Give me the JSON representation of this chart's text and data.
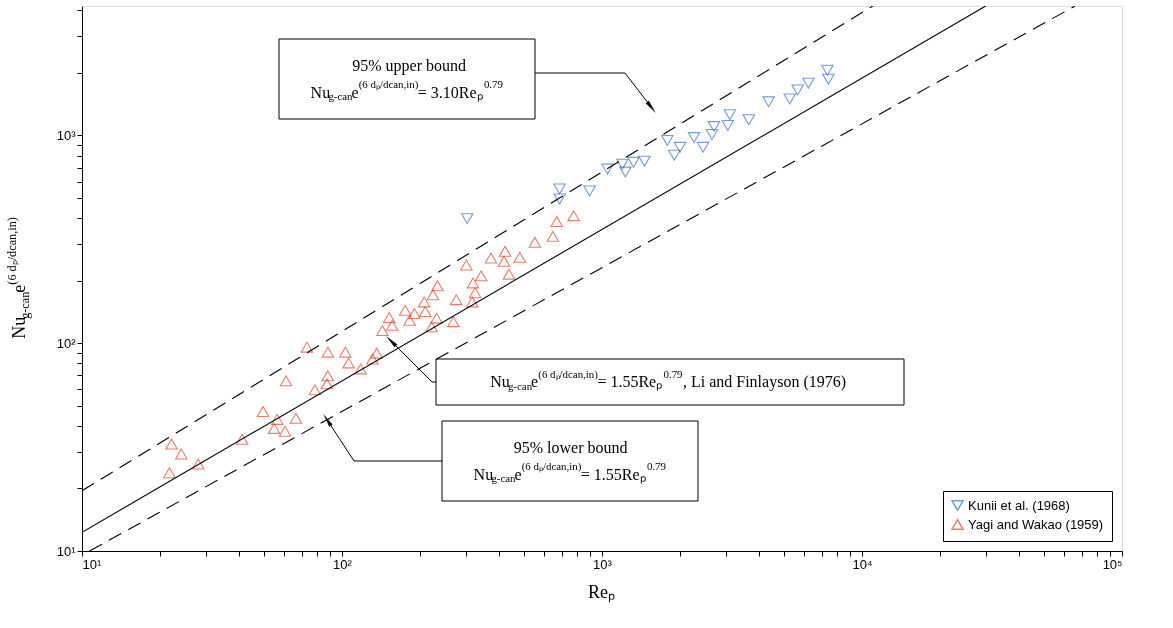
{
  "chart_data": {
    "type": "scatter",
    "xlabel": "Reₚ",
    "ylabel": "Nu$_{g-can}$e$^{(6 dₚ/dcan,in)}$",
    "xlim": [
      10,
      100000
    ],
    "ylim": [
      10,
      4200
    ],
    "log": "xy",
    "grid": false,
    "legend": "bottom right",
    "xticks": [
      {
        "value": 10,
        "label": "10¹"
      },
      {
        "value": 20,
        "label": null
      },
      {
        "value": 30,
        "label": null
      },
      {
        "value": 40,
        "label": null
      },
      {
        "value": 50,
        "label": null
      },
      {
        "value": 60,
        "label": null
      },
      {
        "value": 70,
        "label": null
      },
      {
        "value": 80,
        "label": null
      },
      {
        "value": 90,
        "label": null
      },
      {
        "value": 100,
        "label": "10²"
      },
      {
        "value": 200,
        "label": null
      },
      {
        "value": 300,
        "label": null
      },
      {
        "value": 400,
        "label": null
      },
      {
        "value": 500,
        "label": null
      },
      {
        "value": 600,
        "label": null
      },
      {
        "value": 700,
        "label": null
      },
      {
        "value": 800,
        "label": null
      },
      {
        "value": 900,
        "label": null
      },
      {
        "value": 1000,
        "label": "10³"
      },
      {
        "value": 2000,
        "label": null
      },
      {
        "value": 3000,
        "label": null
      },
      {
        "value": 4000,
        "label": null
      },
      {
        "value": 5000,
        "label": null
      },
      {
        "value": 6000,
        "label": null
      },
      {
        "value": 7000,
        "label": null
      },
      {
        "value": 8000,
        "label": null
      },
      {
        "value": 9000,
        "label": null
      },
      {
        "value": 10000,
        "label": "10⁴"
      },
      {
        "value": 20000,
        "label": null
      },
      {
        "value": 30000,
        "label": null
      },
      {
        "value": 40000,
        "label": null
      },
      {
        "value": 50000,
        "label": null
      },
      {
        "value": 60000,
        "label": null
      },
      {
        "value": 70000,
        "label": null
      },
      {
        "value": 80000,
        "label": null
      },
      {
        "value": 90000,
        "label": null
      },
      {
        "value": 100000,
        "label": "10⁵"
      }
    ],
    "yticks": [
      {
        "value": 10,
        "label": "10¹"
      },
      {
        "value": 20,
        "label": null
      },
      {
        "value": 30,
        "label": null
      },
      {
        "value": 40,
        "label": null
      },
      {
        "value": 50,
        "label": null
      },
      {
        "value": 60,
        "label": null
      },
      {
        "value": 70,
        "label": null
      },
      {
        "value": 80,
        "label": null
      },
      {
        "value": 90,
        "label": null
      },
      {
        "value": 100,
        "label": "10²"
      },
      {
        "value": 200,
        "label": null
      },
      {
        "value": 300,
        "label": null
      },
      {
        "value": 400,
        "label": null
      },
      {
        "value": 500,
        "label": null
      },
      {
        "value": 600,
        "label": null
      },
      {
        "value": 700,
        "label": null
      },
      {
        "value": 800,
        "label": null
      },
      {
        "value": 900,
        "label": null
      },
      {
        "value": 1000,
        "label": "10³"
      },
      {
        "value": 2000,
        "label": null
      },
      {
        "value": 3000,
        "label": null
      },
      {
        "value": 4000,
        "label": null
      }
    ],
    "series": [
      {
        "name": "Kunii et al. (1968)",
        "color": "#3a70c8",
        "marker": "triangle-down",
        "x": [
          303,
          687,
          687,
          896,
          1050,
          1197,
          1230,
          1321,
          1456,
          1782,
          1897,
          1996,
          2259,
          2447,
          2649,
          2698,
          3048,
          3105,
          3670,
          4376,
          5272,
          5654,
          6225,
          7362,
          7430
        ],
        "values": [
          398,
          553,
          495,
          541,
          689,
          728,
          667,
          743,
          752,
          946,
          804,
          877,
          977,
          877,
          1011,
          1104,
          1117,
          1259,
          1191,
          1452,
          1500,
          1656,
          1786,
          2061,
          1866
        ]
      },
      {
        "name": "Yagi and Wakao (1959)",
        "color": "#e0452a",
        "marker": "triangle",
        "x": [
          21.7,
          22.1,
          24.1,
          28.0,
          41.3,
          49.7,
          54.8,
          56.3,
          60.4,
          60.9,
          66.5,
          73.3,
          78.7,
          87.5,
          88.2,
          88.2,
          103,
          106,
          118,
          131,
          136,
          143,
          152,
          156,
          175,
          182,
          190,
          207,
          209,
          221,
          224,
          231,
          233,
          268,
          275,
          301,
          317,
          319,
          325,
          343,
          374,
          420,
          424,
          439,
          483,
          552,
          647,
          670,
          778
        ],
        "values": [
          23.8,
          32.7,
          29.3,
          26.2,
          34.5,
          46.9,
          38.9,
          43.0,
          37.7,
          65.9,
          43.5,
          95.7,
          59.7,
          63.8,
          69.7,
          90.6,
          90.6,
          80.4,
          75.2,
          83.9,
          89.6,
          115,
          133,
          122,
          144,
          129,
          139,
          158,
          142,
          120,
          171,
          132,
          189,
          127,
          162,
          238,
          158,
          195,
          175,
          211,
          257,
          248,
          277,
          215,
          259,
          306,
          327,
          385,
          411
        ]
      },
      {
        "type": "line",
        "color": "#000000",
        "line_style": "dashed",
        "x": [
          10,
          11000
        ],
        "values": [
          19.5,
          4200
        ]
      },
      {
        "type": "line",
        "color": "#000000",
        "line_style": "solid",
        "x": [
          10,
          29900
        ],
        "values": [
          12.3,
          4200
        ]
      },
      {
        "type": "line",
        "color": "#000000",
        "line_style": "dashed",
        "x": [
          10.7,
          66000
        ],
        "values": [
          10,
          4200
        ]
      }
    ],
    "annotations": [
      "95% upper bound\nNu$_{g-can}$e$^{(6 dₚ/dcan,in)}$= 3.10Reₚ$^{0.79}$",
      "Nu$_{g-can}$e$^{(6 dₚ/dcan,in)}$= 1.55Reₚ$^{0.79}$, Li and Finlayson (1976)",
      "95% lower bound\nNu$_{g-can}$e$^{(6 dₚ/dcan,in)}$= 1.55Reₚ$^{0.79}$"
    ]
  }
}
